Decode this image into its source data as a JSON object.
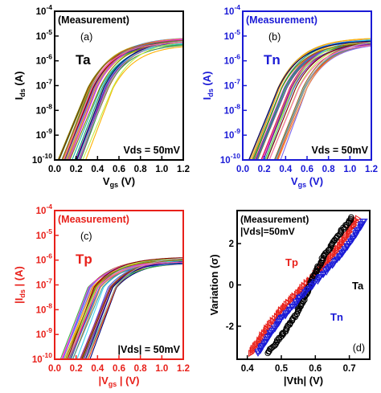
{
  "colors": {
    "a": "#000000",
    "b": "#1a1ad6",
    "c": "#e8201a",
    "d_tp": "#e8201a",
    "d_ta": "#000000",
    "d_tn": "#1a1ad6"
  },
  "chart_data": [
    {
      "type": "line",
      "panel_letter": "(a)",
      "annotation": "(Measurement)",
      "device_label": "Ta",
      "condition": "Vds = 50mV",
      "xlabel": "V",
      "xlabel_sub": "gs",
      "xlabel_unit": "(V)",
      "ylabel": "I",
      "ylabel_sub": "ds",
      "ylabel_unit": "(A)",
      "xlim": [
        0.0,
        1.2
      ],
      "ylim_log10": [
        -10,
        -4
      ],
      "log_y": true,
      "x_ticks": [
        "0.0",
        "0.2",
        "0.4",
        "0.6",
        "0.8",
        "1.0",
        "1.2"
      ],
      "y_ticks": [
        "10-10",
        "10-9",
        "10-8",
        "10-7",
        "10-6",
        "10-5",
        "10-4"
      ],
      "curve_count": 40,
      "vth_range": [
        0.3,
        0.55
      ],
      "ion_log10_range": [
        -5.35,
        -5.05
      ]
    },
    {
      "type": "line",
      "panel_letter": "(b)",
      "annotation": "(Measurement)",
      "device_label": "Tn",
      "condition": "Vds = 50mV",
      "xlabel": "V",
      "xlabel_sub": "gs",
      "xlabel_unit": "(V)",
      "ylabel": "I",
      "ylabel_sub": "ds",
      "ylabel_unit": "(A)",
      "xlim": [
        0.0,
        1.2
      ],
      "ylim_log10": [
        -10,
        -4
      ],
      "log_y": true,
      "x_ticks": [
        "0.0",
        "0.2",
        "0.4",
        "0.6",
        "0.8",
        "1.0",
        "1.2"
      ],
      "y_ticks": [
        "10-10",
        "10-9",
        "10-8",
        "10-7",
        "10-6",
        "10-5",
        "10-4"
      ],
      "curve_count": 40,
      "vth_range": [
        0.32,
        0.6
      ],
      "ion_log10_range": [
        -5.3,
        -5.05
      ]
    },
    {
      "type": "line",
      "panel_letter": "(c)",
      "annotation": "(Measurement)",
      "device_label": "Tp",
      "condition": "|Vds| = 50mV",
      "xlabel": "|V",
      "xlabel_sub": "gs",
      "xlabel_unit": "| (V)",
      "ylabel": "|I",
      "ylabel_sub": "ds",
      "ylabel_unit": "| (A)",
      "xlim": [
        0.0,
        1.2
      ],
      "ylim_log10": [
        -10,
        -4
      ],
      "log_y": true,
      "x_ticks": [
        "0.0",
        "0.2",
        "0.4",
        "0.6",
        "0.8",
        "1.0",
        "1.2"
      ],
      "y_ticks": [
        "10-10",
        "10-9",
        "10-8",
        "10-7",
        "10-6",
        "10-5",
        "10-4"
      ],
      "curve_count": 40,
      "vth_range": [
        0.3,
        0.58
      ],
      "ion_log10_range": [
        -6.15,
        -5.85
      ]
    },
    {
      "type": "scatter",
      "panel_letter": "(d)",
      "annotation_line1": "(Measurement)",
      "annotation_line2": "|Vds|=50mV",
      "xlabel": "|Vth| (V)",
      "ylabel": "Variation (σ)",
      "xlim": [
        0.37,
        0.76
      ],
      "ylim": [
        -3.6,
        3.6
      ],
      "x_ticks": [
        "0.4",
        "0.5",
        "0.6",
        "0.7"
      ],
      "y_ticks": [
        "-2",
        "0",
        "2"
      ],
      "series": [
        {
          "name": "Tp",
          "marker": "triangle-right",
          "x_range": [
            0.412,
            0.722
          ],
          "y_range": [
            -3.3,
            3.2
          ]
        },
        {
          "name": "Ta",
          "marker": "circle",
          "x_range": [
            0.46,
            0.708
          ],
          "y_range": [
            -3.3,
            3.25
          ]
        },
        {
          "name": "Tn",
          "marker": "triangle-down",
          "x_range": [
            0.432,
            0.742
          ],
          "y_range": [
            -3.3,
            3.1
          ]
        }
      ]
    }
  ]
}
